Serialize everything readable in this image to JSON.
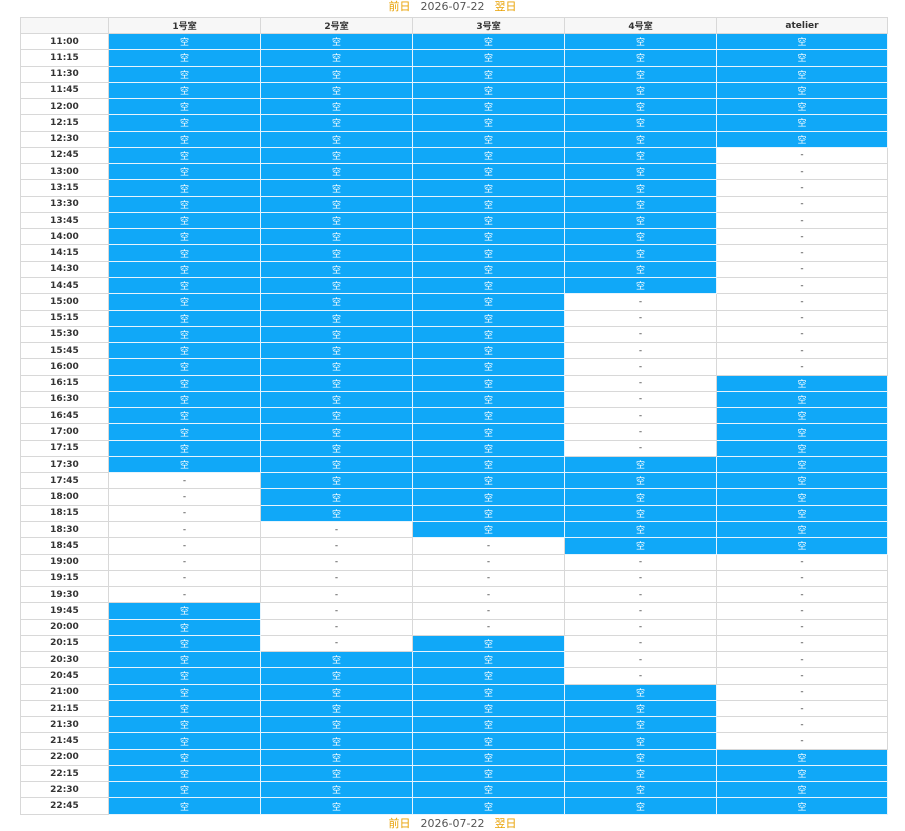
{
  "nav_top": {
    "prev": "前日",
    "date": "2026-07-22",
    "next": "翌日"
  },
  "table": {
    "header": [
      "1号室",
      "2号室",
      "3号室",
      "4号室",
      "atelier"
    ],
    "rows": [
      [
        "11:00",
        "空",
        "空",
        "空",
        "空",
        "空"
      ],
      [
        "11:15",
        "空",
        "空",
        "空",
        "空",
        "空"
      ],
      [
        "11:30",
        "空",
        "空",
        "空",
        "空",
        "空"
      ],
      [
        "11:45",
        "空",
        "空",
        "空",
        "空",
        "空"
      ],
      [
        "12:00",
        "空",
        "空",
        "空",
        "空",
        "空"
      ],
      [
        "12:15",
        "空",
        "空",
        "空",
        "空",
        "空"
      ],
      [
        "12:30",
        "空",
        "空",
        "空",
        "空",
        "空"
      ],
      [
        "12:45",
        "空",
        "空",
        "空",
        "空",
        "-"
      ],
      [
        "13:00",
        "空",
        "空",
        "空",
        "空",
        "-"
      ],
      [
        "13:15",
        "空",
        "空",
        "空",
        "空",
        "-"
      ],
      [
        "13:30",
        "空",
        "空",
        "空",
        "空",
        "-"
      ],
      [
        "13:45",
        "空",
        "空",
        "空",
        "空",
        "-"
      ],
      [
        "14:00",
        "空",
        "空",
        "空",
        "空",
        "-"
      ],
      [
        "14:15",
        "空",
        "空",
        "空",
        "空",
        "-"
      ],
      [
        "14:30",
        "空",
        "空",
        "空",
        "空",
        "-"
      ],
      [
        "14:45",
        "空",
        "空",
        "空",
        "空",
        "-"
      ],
      [
        "15:00",
        "空",
        "空",
        "空",
        "-",
        "-"
      ],
      [
        "15:15",
        "空",
        "空",
        "空",
        "-",
        "-"
      ],
      [
        "15:30",
        "空",
        "空",
        "空",
        "-",
        "-"
      ],
      [
        "15:45",
        "空",
        "空",
        "空",
        "-",
        "-"
      ],
      [
        "16:00",
        "空",
        "空",
        "空",
        "-",
        "-"
      ],
      [
        "16:15",
        "空",
        "空",
        "空",
        "-",
        "空"
      ],
      [
        "16:30",
        "空",
        "空",
        "空",
        "-",
        "空"
      ],
      [
        "16:45",
        "空",
        "空",
        "空",
        "-",
        "空"
      ],
      [
        "17:00",
        "空",
        "空",
        "空",
        "-",
        "空"
      ],
      [
        "17:15",
        "空",
        "空",
        "空",
        "-",
        "空"
      ],
      [
        "17:30",
        "空",
        "空",
        "空",
        "空",
        "空"
      ],
      [
        "17:45",
        "-",
        "空",
        "空",
        "空",
        "空"
      ],
      [
        "18:00",
        "-",
        "空",
        "空",
        "空",
        "空"
      ],
      [
        "18:15",
        "-",
        "空",
        "空",
        "空",
        "空"
      ],
      [
        "18:30",
        "-",
        "-",
        "空",
        "空",
        "空"
      ],
      [
        "18:45",
        "-",
        "-",
        "-",
        "空",
        "空"
      ],
      [
        "19:00",
        "-",
        "-",
        "-",
        "-",
        "-"
      ],
      [
        "19:15",
        "-",
        "-",
        "-",
        "-",
        "-"
      ],
      [
        "19:30",
        "-",
        "-",
        "-",
        "-",
        "-"
      ],
      [
        "19:45",
        "空",
        "-",
        "-",
        "-",
        "-"
      ],
      [
        "20:00",
        "空",
        "-",
        "-",
        "-",
        "-"
      ],
      [
        "20:15",
        "空",
        "-",
        "空",
        "-",
        "-"
      ],
      [
        "20:30",
        "空",
        "空",
        "空",
        "-",
        "-"
      ],
      [
        "20:45",
        "空",
        "空",
        "空",
        "-",
        "-"
      ],
      [
        "21:00",
        "空",
        "空",
        "空",
        "空",
        "-"
      ],
      [
        "21:15",
        "空",
        "空",
        "空",
        "空",
        "-"
      ],
      [
        "21:30",
        "空",
        "空",
        "空",
        "空",
        "-"
      ],
      [
        "21:45",
        "空",
        "空",
        "空",
        "空",
        "-"
      ],
      [
        "22:00",
        "空",
        "空",
        "空",
        "空",
        "空"
      ],
      [
        "22:15",
        "空",
        "空",
        "空",
        "空",
        "空"
      ],
      [
        "22:30",
        "空",
        "空",
        "空",
        "空",
        "空"
      ],
      [
        "22:45",
        "空",
        "空",
        "空",
        "空",
        "空"
      ]
    ]
  },
  "nav_bottom": {
    "prev": "前日",
    "date": "2026-07-22",
    "next": "翌日"
  }
}
